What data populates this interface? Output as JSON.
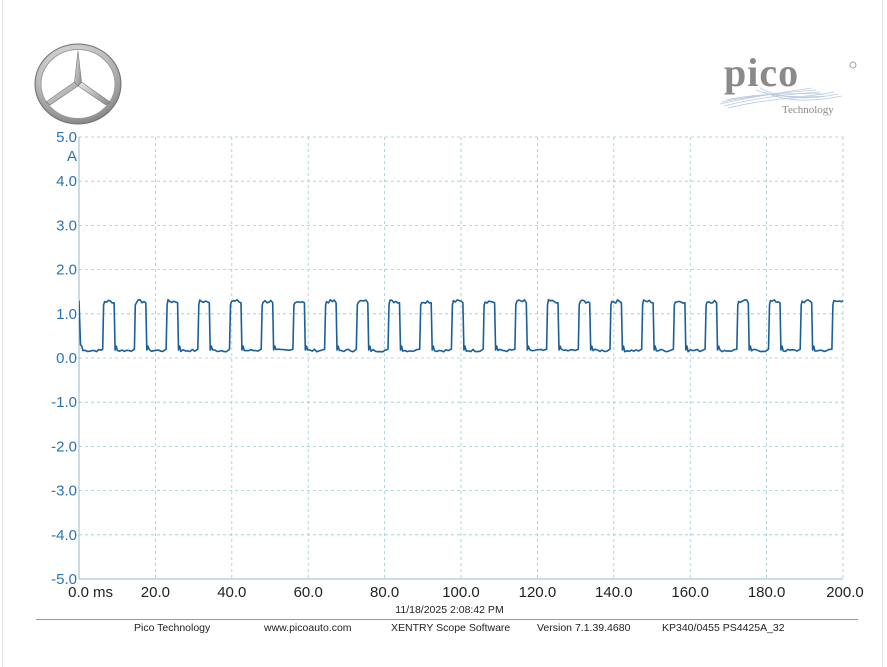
{
  "logos": {
    "left": "mercedes-star-logo",
    "right_text": "pico",
    "right_subtext": "Technology"
  },
  "footer": {
    "timestamp": "11/18/2025 2:08:42 PM",
    "company": "Pico Technology",
    "website": "www.picoauto.com",
    "software": "XENTRY Scope Software",
    "version": "Version 7.1.39.4680",
    "device": "KP340/0455 PS4425A_32"
  },
  "colors": {
    "trace": "#1a5f9a",
    "y_axis_text": "#2a74b0",
    "grid": "#8fd0d6"
  },
  "chart_data": {
    "type": "line",
    "title": "",
    "xlabel": "",
    "ylabel": "",
    "x_unit": "ms",
    "y_unit": "A",
    "xlim": [
      0,
      200
    ],
    "ylim": [
      -5,
      5
    ],
    "x_ticks": [
      0,
      20,
      40,
      60,
      80,
      100,
      120,
      140,
      160,
      180,
      200
    ],
    "x_tick_labels": [
      "0.0",
      "20.0",
      "40.0",
      "60.0",
      "80.0",
      "100.0",
      "120.0",
      "140.0",
      "160.0",
      "180.0",
      "200.0"
    ],
    "y_ticks": [
      5,
      4,
      3,
      2,
      1,
      0,
      -1,
      -2,
      -3,
      -4,
      -5
    ],
    "y_tick_labels": [
      "5.0",
      "4.0",
      "3.0",
      "2.0",
      "1.0",
      "0.0",
      "-1.0",
      "-2.0",
      "-3.0",
      "-4.0",
      "-5.0"
    ],
    "grid": true,
    "legend": "none",
    "series": [
      {
        "waveform": "pulse",
        "period_ms": 8.3,
        "first_rise_ms": 6.2,
        "high_duration_ms": 3.0,
        "high_level": 1.3,
        "low_level": 0.15,
        "x_start": 0,
        "x_end": 200
      }
    ]
  }
}
